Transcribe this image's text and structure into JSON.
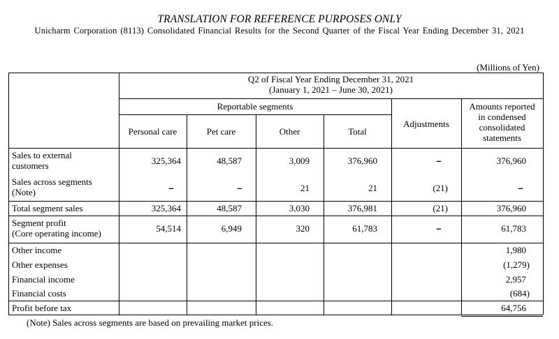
{
  "header": {
    "title": "TRANSLATION FOR REFERENCE PURPOSES ONLY",
    "subtitle": "Unicharm Corporation (8113) Consolidated Financial Results for the Second Quarter of the Fiscal Year Ending December 31, 2021"
  },
  "unit_label": "(Millions of Yen)",
  "table": {
    "period_line1": "Q2 of Fiscal Year Ending December 31, 2021",
    "period_line2": "(January 1, 2021 – June 30, 2021)",
    "reportable_segments": "Reportable segments",
    "columns": {
      "personal_care": "Personal care",
      "pet_care": "Pet care",
      "other": "Other",
      "total": "Total",
      "adjustments": "Adjustments",
      "reported": [
        "Amounts reported",
        "in condensed",
        "consolidated",
        "statements"
      ]
    },
    "rows": {
      "sales_external": {
        "label": [
          "Sales to external",
          "customers"
        ],
        "personal_care": "325,364",
        "pet_care": "48,587",
        "other": "3,009",
        "total": "376,960",
        "adjustments": "–",
        "reported": "376,960"
      },
      "sales_across": {
        "label": [
          "Sales across segments",
          "(Note)"
        ],
        "personal_care": "–",
        "pet_care": "–",
        "other": "21",
        "total": "21",
        "adjustments": "(21)",
        "reported": "–"
      },
      "total_sales": {
        "label": "Total segment sales",
        "personal_care": "325,364",
        "pet_care": "48,587",
        "other": "3,030",
        "total": "376,981",
        "adjustments": "(21)",
        "reported": "376,960"
      },
      "segment_profit": {
        "label": [
          "Segment profit",
          "(Core operating income)"
        ],
        "personal_care": "54,514",
        "pet_care": "6,949",
        "other": "320",
        "total": "61,783",
        "adjustments": "–",
        "reported": "61,783"
      },
      "other_income": {
        "label": "Other income",
        "reported": "1,980"
      },
      "other_expenses": {
        "label": "Other expenses",
        "reported": "(1,279)"
      },
      "financial_income": {
        "label": "Financial income",
        "reported": "2,957"
      },
      "financial_costs": {
        "label": "Financial costs",
        "reported": "(684)"
      },
      "profit_before_tax": {
        "label": "Profit before tax",
        "reported": "64,756"
      }
    }
  },
  "note": "(Note) Sales across segments are based on prevailing market prices."
}
